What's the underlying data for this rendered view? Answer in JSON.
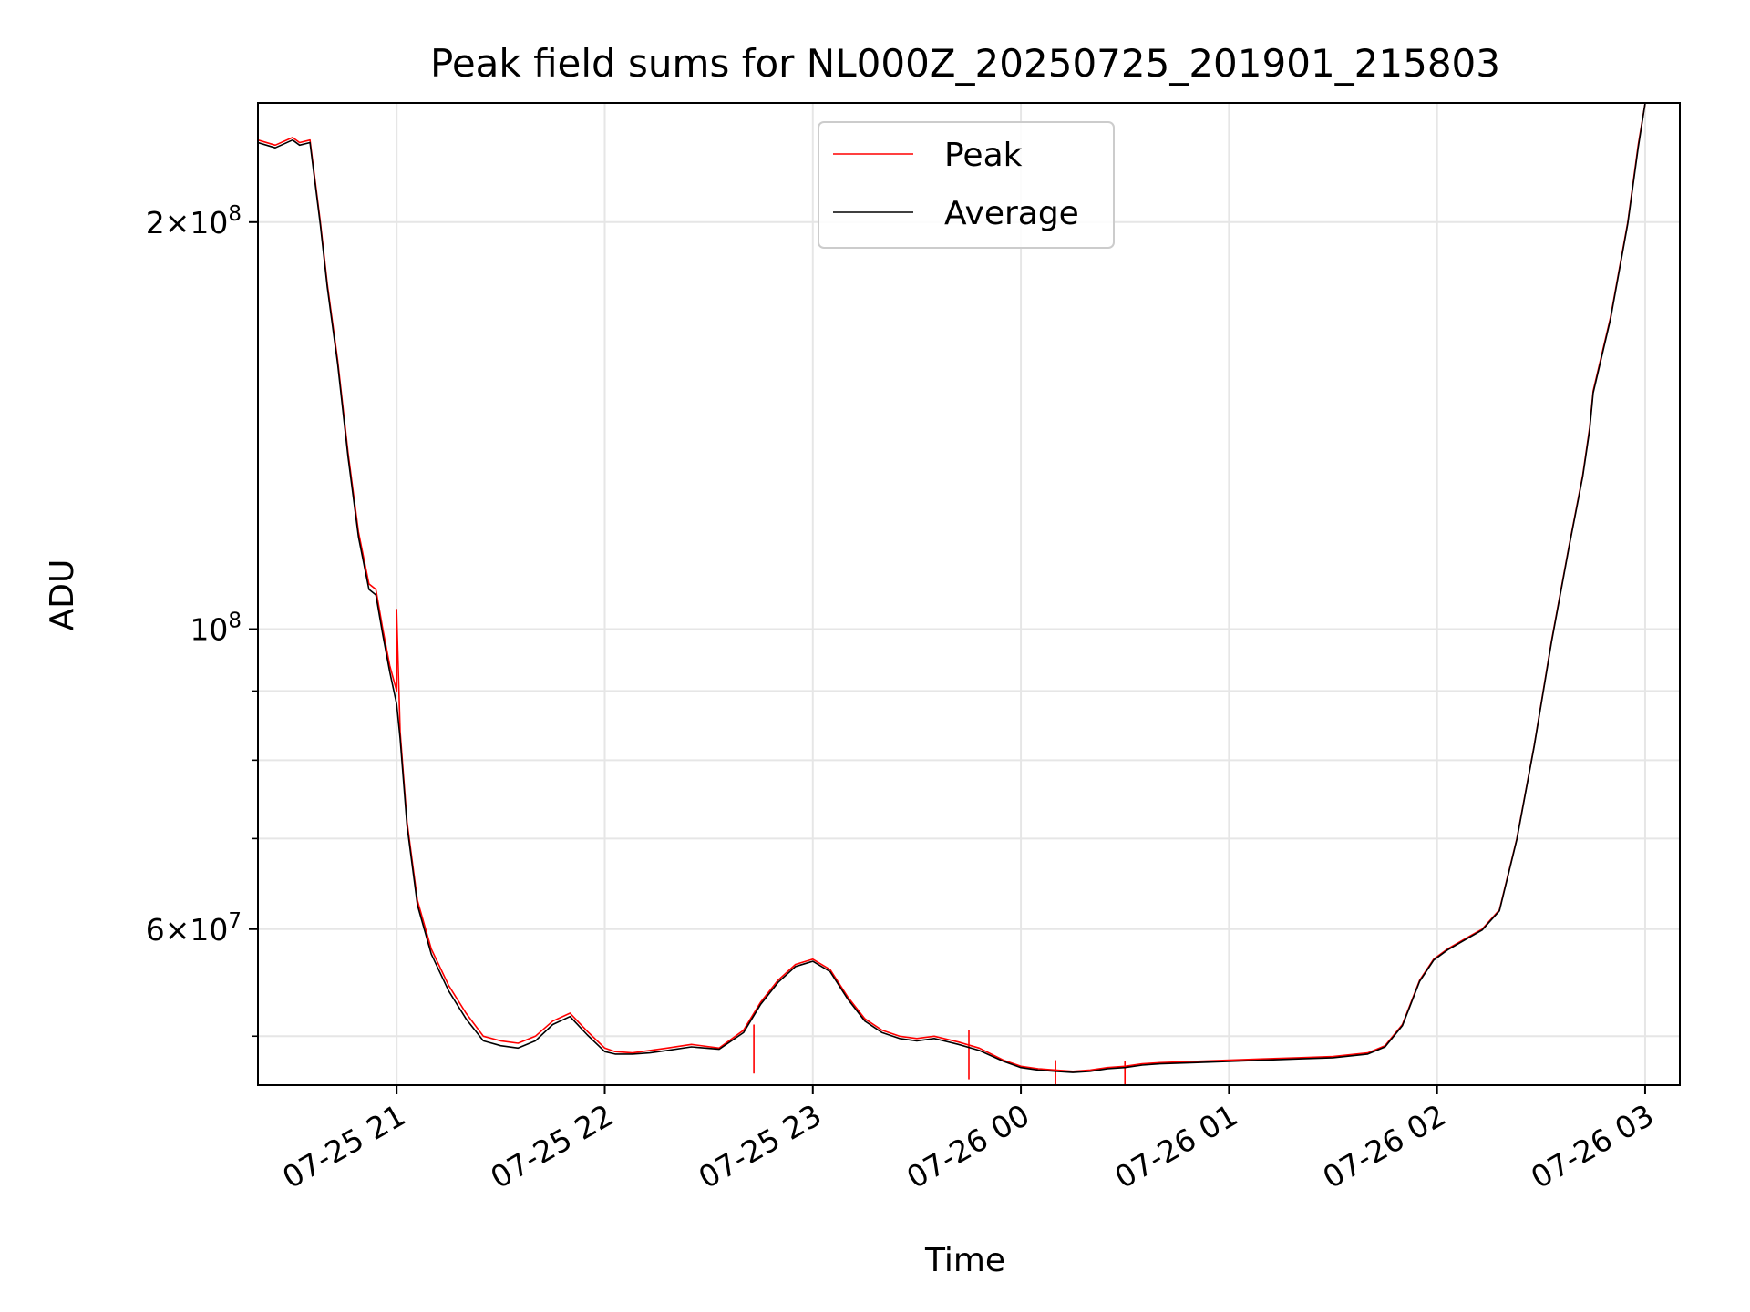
{
  "chart_data": {
    "type": "line",
    "title": "Peak field sums for NL000Z_20250725_201901_215803",
    "xlabel": "Time",
    "ylabel": "ADU",
    "y_scale": "log",
    "xlim": [
      "2025-07-25 20:20",
      "2025-07-26 03:10"
    ],
    "ylim": [
      46000000.0,
      245000000.0
    ],
    "grid": true,
    "legend_position": "upper center",
    "x_ticks": [
      {
        "value": "2025-07-25 21:00",
        "label": "07-25 21"
      },
      {
        "value": "2025-07-25 22:00",
        "label": "07-25 22"
      },
      {
        "value": "2025-07-25 23:00",
        "label": "07-25 23"
      },
      {
        "value": "2025-07-26 00:00",
        "label": "07-26 00"
      },
      {
        "value": "2025-07-26 01:00",
        "label": "07-26 01"
      },
      {
        "value": "2025-07-26 02:00",
        "label": "07-26 02"
      },
      {
        "value": "2025-07-26 03:00",
        "label": "07-26 03"
      }
    ],
    "y_major_ticks": [
      {
        "value": 200000000,
        "label_base": "2×10",
        "label_exp": "8"
      },
      {
        "value": 100000000,
        "label_base": "10",
        "label_exp": "8"
      },
      {
        "value": 60000000,
        "label_base": "6×10",
        "label_exp": "7"
      }
    ],
    "y_minor_ticks": [
      50000000,
      70000000,
      80000000,
      90000000
    ],
    "series": [
      {
        "name": "Peak",
        "color": "#ff0000",
        "x": [
          "2025-07-25 20:20",
          "2025-07-25 20:25",
          "2025-07-25 20:30",
          "2025-07-25 20:32",
          "2025-07-25 20:35",
          "2025-07-25 20:38",
          "2025-07-25 20:40",
          "2025-07-25 20:43",
          "2025-07-25 20:46",
          "2025-07-25 20:49",
          "2025-07-25 20:52",
          "2025-07-25 20:54",
          "2025-07-25 20:56",
          "2025-07-25 20:58",
          "2025-07-25 21:00",
          "2025-07-25 21:00",
          "2025-07-25 21:01",
          "2025-07-25 21:03",
          "2025-07-25 21:06",
          "2025-07-25 21:10",
          "2025-07-25 21:15",
          "2025-07-25 21:20",
          "2025-07-25 21:25",
          "2025-07-25 21:30",
          "2025-07-25 21:35",
          "2025-07-25 21:40",
          "2025-07-25 21:45",
          "2025-07-25 21:50",
          "2025-07-25 21:55",
          "2025-07-25 22:00",
          "2025-07-25 22:03",
          "2025-07-25 22:08",
          "2025-07-25 22:13",
          "2025-07-25 22:18",
          "2025-07-25 22:25",
          "2025-07-25 22:33",
          "2025-07-25 22:40",
          "2025-07-25 22:45",
          "2025-07-25 22:50",
          "2025-07-25 22:55",
          "2025-07-25 23:00",
          "2025-07-25 23:05",
          "2025-07-25 23:10",
          "2025-07-25 23:15",
          "2025-07-25 23:20",
          "2025-07-25 23:25",
          "2025-07-25 23:30",
          "2025-07-25 23:35",
          "2025-07-25 23:42",
          "2025-07-25 23:48",
          "2025-07-25 23:55",
          "2025-07-26 00:00",
          "2025-07-26 00:05",
          "2025-07-26 00:10",
          "2025-07-26 00:15",
          "2025-07-26 00:20",
          "2025-07-26 00:25",
          "2025-07-26 00:30",
          "2025-07-26 00:35",
          "2025-07-26 00:40",
          "2025-07-26 00:50",
          "2025-07-26 01:00",
          "2025-07-26 01:10",
          "2025-07-26 01:20",
          "2025-07-26 01:30",
          "2025-07-26 01:40",
          "2025-07-26 01:45",
          "2025-07-26 01:50",
          "2025-07-26 01:55",
          "2025-07-26 01:59",
          "2025-07-26 02:03",
          "2025-07-26 02:08",
          "2025-07-26 02:13",
          "2025-07-26 02:18",
          "2025-07-26 02:23",
          "2025-07-26 02:28",
          "2025-07-26 02:33",
          "2025-07-26 02:38",
          "2025-07-26 02:42",
          "2025-07-26 02:44",
          "2025-07-26 02:45",
          "2025-07-26 02:50",
          "2025-07-26 02:55",
          "2025-07-26 02:58",
          "2025-07-26 03:00"
        ],
        "y": [
          230000000,
          228000000,
          231000000,
          229000000,
          230000000,
          200000000,
          180000000,
          158000000,
          135000000,
          118000000,
          108000000,
          107000000,
          100000000,
          94000000,
          90000000,
          103000000,
          84000000,
          72000000,
          63000000,
          58000000,
          54500000,
          52000000,
          50000000,
          49600000,
          49400000,
          50000000,
          51300000,
          52000000,
          50400000,
          49000000,
          48700000,
          48600000,
          48800000,
          49000000,
          49300000,
          49000000,
          50500000,
          53000000,
          55000000,
          56500000,
          57000000,
          56000000,
          53500000,
          51500000,
          50500000,
          50000000,
          49800000,
          50000000,
          49500000,
          49000000,
          48000000,
          47500000,
          47300000,
          47200000,
          47100000,
          47200000,
          47400000,
          47500000,
          47700000,
          47800000,
          47900000,
          48000000,
          48100000,
          48200000,
          48300000,
          48600000,
          49200000,
          51000000,
          55000000,
          57000000,
          58000000,
          59000000,
          60000000,
          62000000,
          70000000,
          82000000,
          98000000,
          115000000,
          130000000,
          141000000,
          150000000,
          170000000,
          200000000,
          228000000,
          245000000
        ],
        "spikes": [
          {
            "x": "2025-07-25 21:00",
            "y": 103500000
          },
          {
            "x": "2025-07-25 22:43",
            "y": 51000000
          },
          {
            "x": "2025-07-25 23:45",
            "y": 50500000
          },
          {
            "x": "2025-07-26 00:10",
            "y": 48000000
          },
          {
            "x": "2025-07-26 00:30",
            "y": 47900000
          }
        ]
      },
      {
        "name": "Average",
        "color": "#000000",
        "x": [
          "2025-07-25 20:20",
          "2025-07-25 20:25",
          "2025-07-25 20:30",
          "2025-07-25 20:32",
          "2025-07-25 20:35",
          "2025-07-25 20:38",
          "2025-07-25 20:40",
          "2025-07-25 20:43",
          "2025-07-25 20:46",
          "2025-07-25 20:49",
          "2025-07-25 20:52",
          "2025-07-25 20:54",
          "2025-07-25 20:56",
          "2025-07-25 20:58",
          "2025-07-25 21:00",
          "2025-07-25 21:01",
          "2025-07-25 21:03",
          "2025-07-25 21:06",
          "2025-07-25 21:10",
          "2025-07-25 21:15",
          "2025-07-25 21:20",
          "2025-07-25 21:25",
          "2025-07-25 21:30",
          "2025-07-25 21:35",
          "2025-07-25 21:40",
          "2025-07-25 21:45",
          "2025-07-25 21:50",
          "2025-07-25 21:55",
          "2025-07-25 22:00",
          "2025-07-25 22:03",
          "2025-07-25 22:08",
          "2025-07-25 22:13",
          "2025-07-25 22:18",
          "2025-07-25 22:25",
          "2025-07-25 22:33",
          "2025-07-25 22:40",
          "2025-07-25 22:45",
          "2025-07-25 22:50",
          "2025-07-25 22:55",
          "2025-07-25 23:00",
          "2025-07-25 23:05",
          "2025-07-25 23:10",
          "2025-07-25 23:15",
          "2025-07-25 23:20",
          "2025-07-25 23:25",
          "2025-07-25 23:30",
          "2025-07-25 23:35",
          "2025-07-25 23:42",
          "2025-07-25 23:48",
          "2025-07-25 23:55",
          "2025-07-26 00:00",
          "2025-07-26 00:05",
          "2025-07-26 00:10",
          "2025-07-26 00:15",
          "2025-07-26 00:20",
          "2025-07-26 00:25",
          "2025-07-26 00:30",
          "2025-07-26 00:35",
          "2025-07-26 00:40",
          "2025-07-26 00:50",
          "2025-07-26 01:00",
          "2025-07-26 01:10",
          "2025-07-26 01:20",
          "2025-07-26 01:30",
          "2025-07-26 01:40",
          "2025-07-26 01:45",
          "2025-07-26 01:50",
          "2025-07-26 01:55",
          "2025-07-26 01:59",
          "2025-07-26 02:03",
          "2025-07-26 02:08",
          "2025-07-26 02:13",
          "2025-07-26 02:18",
          "2025-07-26 02:23",
          "2025-07-26 02:28",
          "2025-07-26 02:33",
          "2025-07-26 02:38",
          "2025-07-26 02:42",
          "2025-07-26 02:44",
          "2025-07-26 02:45",
          "2025-07-26 02:50",
          "2025-07-26 02:55",
          "2025-07-26 02:58",
          "2025-07-26 03:00"
        ],
        "y": [
          229000000,
          227000000,
          230000000,
          228000000,
          229000000,
          199000000,
          179000000,
          157000000,
          134000000,
          117000000,
          107000000,
          106000000,
          99000000,
          93000000,
          88000000,
          83000000,
          71500000,
          62500000,
          57500000,
          54000000,
          51500000,
          49600000,
          49200000,
          49000000,
          49600000,
          51000000,
          51700000,
          50100000,
          48700000,
          48500000,
          48500000,
          48600000,
          48800000,
          49100000,
          48900000,
          50300000,
          52800000,
          54800000,
          56300000,
          56800000,
          55800000,
          53300000,
          51300000,
          50300000,
          49800000,
          49600000,
          49800000,
          49300000,
          48800000,
          47900000,
          47400000,
          47200000,
          47100000,
          47000000,
          47100000,
          47300000,
          47400000,
          47600000,
          47700000,
          47800000,
          47900000,
          48000000,
          48100000,
          48200000,
          48500000,
          49100000,
          50900000,
          54900000,
          56900000,
          57900000,
          58900000,
          59900000,
          61900000,
          69900000,
          81900000,
          97800000,
          114800000,
          129700000,
          140500000,
          149500000,
          169500000,
          199500000,
          227000000,
          245000000
        ]
      }
    ]
  }
}
